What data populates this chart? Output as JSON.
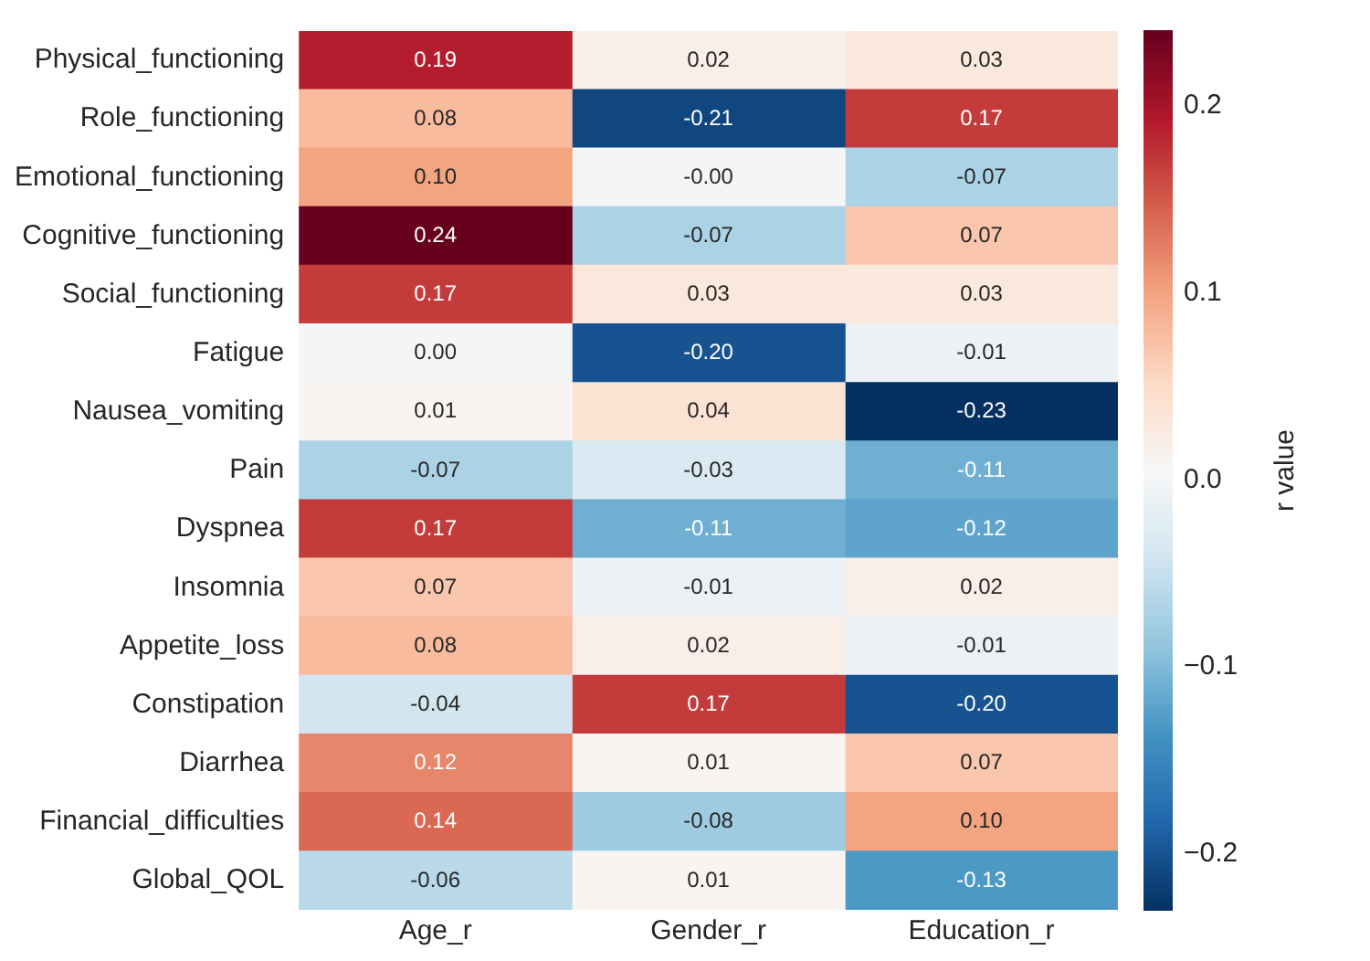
{
  "chart_data": {
    "type": "heatmap",
    "clabel": "r value",
    "categories": [
      "Age_r",
      "Gender_r",
      "Education_r"
    ],
    "y_categories": [
      "Physical_functioning",
      "Role_functioning",
      "Emotional_functioning",
      "Cognitive_functioning",
      "Social_functioning",
      "Fatigue",
      "Nausea_vomiting",
      "Pain",
      "Dyspnea",
      "Insomnia",
      "Appetite_loss",
      "Constipation",
      "Diarrhea",
      "Financial_difficulties",
      "Global_QOL"
    ],
    "cells": [
      [
        0.19,
        0.02,
        0.03
      ],
      [
        0.08,
        -0.21,
        0.17
      ],
      [
        0.1,
        0,
        -0.07
      ],
      [
        0.24,
        -0.07,
        0.07
      ],
      [
        0.17,
        0.03,
        0.03
      ],
      [
        0.0,
        -0.2,
        -0.01
      ],
      [
        0.01,
        0.04,
        -0.23
      ],
      [
        -0.07,
        -0.03,
        -0.11
      ],
      [
        0.17,
        -0.11,
        -0.12
      ],
      [
        0.07,
        -0.01,
        0.02
      ],
      [
        0.08,
        0.02,
        -0.01
      ],
      [
        -0.04,
        0.17,
        -0.2
      ],
      [
        0.12,
        0.01,
        0.07
      ],
      [
        0.14,
        -0.08,
        0.1
      ],
      [
        -0.06,
        0.01,
        -0.13
      ]
    ],
    "cell_labels": [
      [
        "0.19",
        "0.02",
        "0.03"
      ],
      [
        "0.08",
        "-0.21",
        "0.17"
      ],
      [
        "0.10",
        "-0.00",
        "-0.07"
      ],
      [
        "0.24",
        "-0.07",
        "0.07"
      ],
      [
        "0.17",
        "0.03",
        "0.03"
      ],
      [
        "0.00",
        "-0.20",
        "-0.01"
      ],
      [
        "0.01",
        "0.04",
        "-0.23"
      ],
      [
        "-0.07",
        "-0.03",
        "-0.11"
      ],
      [
        "0.17",
        "-0.11",
        "-0.12"
      ],
      [
        "0.07",
        "-0.01",
        "0.02"
      ],
      [
        "0.08",
        "0.02",
        "-0.01"
      ],
      [
        "-0.04",
        "0.17",
        "-0.20"
      ],
      [
        "0.12",
        "0.01",
        "0.07"
      ],
      [
        "0.14",
        "-0.08",
        "0.10"
      ],
      [
        "-0.06",
        "0.01",
        "-0.13"
      ]
    ],
    "clim": [
      -0.23,
      0.24
    ],
    "cticks": [
      {
        "value": -0.2,
        "label": "−0.2"
      },
      {
        "value": -0.1,
        "label": "−0.1"
      },
      {
        "value": 0,
        "label": "0.0"
      },
      {
        "value": 0.1,
        "label": "0.1"
      },
      {
        "value": 0.2,
        "label": "0.2"
      }
    ]
  }
}
